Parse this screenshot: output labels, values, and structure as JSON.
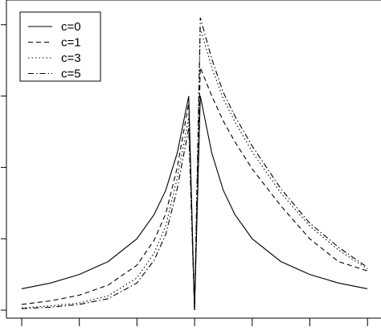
{
  "chart_data": {
    "type": "line",
    "title": "",
    "xlabel": "",
    "ylabel": "",
    "xlim": [
      -3,
      3
    ],
    "ylim": [
      0,
      0.42
    ],
    "grid": false,
    "legend_position": "top-left",
    "x_ticks": [
      -3,
      -2,
      -1,
      0,
      1,
      2,
      3
    ],
    "y_ticks": [
      0,
      0.1,
      0.2,
      0.3,
      0.4
    ],
    "series": [
      {
        "name": "c=0",
        "style": "solid",
        "x": [
          -3.0,
          -2.5,
          -2.0,
          -1.5,
          -1.0,
          -0.7,
          -0.5,
          -0.3,
          -0.1,
          0.0,
          0.1,
          0.3,
          0.5,
          0.7,
          1.0,
          1.5,
          2.0,
          2.5,
          3.0
        ],
        "y": [
          0.03,
          0.038,
          0.05,
          0.068,
          0.1,
          0.134,
          0.168,
          0.22,
          0.3,
          0.0,
          0.3,
          0.22,
          0.168,
          0.134,
          0.1,
          0.068,
          0.05,
          0.038,
          0.03
        ]
      },
      {
        "name": "c=1",
        "style": "dashed",
        "x": [
          -3.0,
          -2.5,
          -2.0,
          -1.5,
          -1.0,
          -0.7,
          -0.5,
          -0.3,
          -0.1,
          0.0,
          0.1,
          0.3,
          0.5,
          0.7,
          1.0,
          1.5,
          2.0,
          2.5,
          3.0
        ],
        "y": [
          0.008,
          0.013,
          0.021,
          0.035,
          0.063,
          0.098,
          0.135,
          0.2,
          0.29,
          0.0,
          0.34,
          0.3,
          0.265,
          0.236,
          0.198,
          0.146,
          0.1,
          0.068,
          0.055
        ]
      },
      {
        "name": "c=3",
        "style": "dotted",
        "x": [
          -3.0,
          -2.5,
          -2.0,
          -1.5,
          -1.0,
          -0.7,
          -0.5,
          -0.3,
          -0.1,
          0.0,
          0.1,
          0.3,
          0.5,
          0.7,
          1.0,
          1.5,
          2.0,
          2.5,
          3.0
        ],
        "y": [
          0.003,
          0.006,
          0.01,
          0.02,
          0.045,
          0.08,
          0.118,
          0.185,
          0.27,
          0.0,
          0.395,
          0.34,
          0.296,
          0.264,
          0.222,
          0.164,
          0.118,
          0.084,
          0.058
        ]
      },
      {
        "name": "c=5",
        "style": "dashdot",
        "x": [
          -3.0,
          -2.5,
          -2.0,
          -1.5,
          -1.0,
          -0.7,
          -0.5,
          -0.3,
          -0.1,
          0.0,
          0.1,
          0.3,
          0.5,
          0.7,
          1.0,
          1.5,
          2.0,
          2.5,
          3.0
        ],
        "y": [
          0.002,
          0.004,
          0.008,
          0.016,
          0.038,
          0.07,
          0.106,
          0.17,
          0.255,
          0.0,
          0.41,
          0.352,
          0.305,
          0.272,
          0.23,
          0.17,
          0.122,
          0.088,
          0.06
        ]
      }
    ]
  }
}
